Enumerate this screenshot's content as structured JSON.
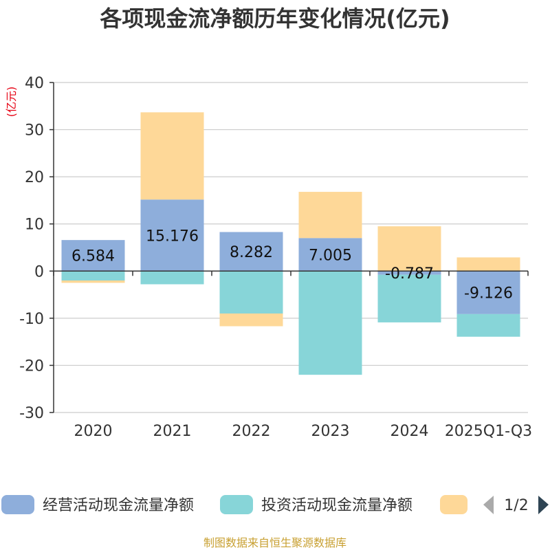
{
  "chart_data": {
    "type": "bar",
    "stacked": true,
    "title": "各项现金流净额历年变化情况(亿元)",
    "unit_label": "(亿元)",
    "categories": [
      "2020",
      "2021",
      "2022",
      "2023",
      "2024",
      "2025Q1-Q3"
    ],
    "ylim": [
      -30,
      40
    ],
    "yticks": [
      40,
      30,
      20,
      10,
      0,
      -10,
      -20,
      -30
    ],
    "grid": true,
    "series": [
      {
        "name": "经营活动现金流量净额",
        "color": "#8eaedb",
        "values": [
          6.584,
          15.176,
          8.282,
          7.005,
          -0.787,
          -9.126
        ],
        "labels": [
          "6.584",
          "15.176",
          "8.282",
          "7.005",
          "-0.787",
          "-9.126"
        ]
      },
      {
        "name": "投资活动现金流量净额",
        "color": "#87d5d8",
        "values": [
          -2.0,
          -2.8,
          -9.0,
          -22.0,
          -10.1,
          -4.8
        ]
      },
      {
        "name": "",
        "color": "#fed898",
        "values": [
          -0.5,
          18.5,
          -2.7,
          9.8,
          9.5,
          2.9
        ]
      }
    ],
    "legend": {
      "position": "bottom",
      "page": "1/2"
    }
  },
  "source_text": "制图数据来自恒生聚源数据库"
}
